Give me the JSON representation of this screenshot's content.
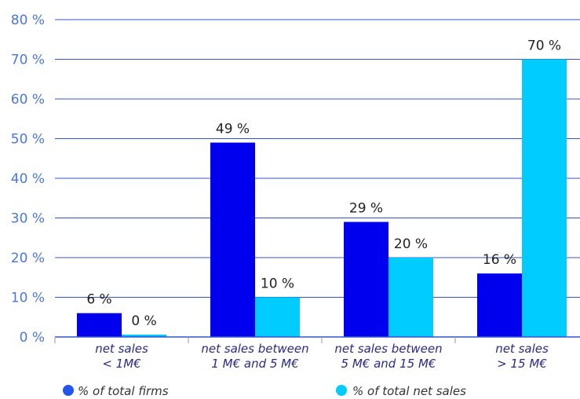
{
  "chart_data": {
    "type": "bar",
    "categories": [
      [
        "net sales",
        "< 1M€"
      ],
      [
        "net sales between",
        "1 M€ and 5 M€"
      ],
      [
        "net sales between",
        "5 M€ and 15 M€"
      ],
      [
        "net sales",
        "> 15 M€"
      ]
    ],
    "series": [
      {
        "name": "% of total firms",
        "values": [
          6,
          49,
          29,
          16
        ],
        "labels": [
          "6 %",
          "49 %",
          "29 %",
          "16 %"
        ],
        "color": "#0000ee"
      },
      {
        "name": "% of total net sales",
        "values": [
          0,
          10,
          20,
          70
        ],
        "labels": [
          "0 %",
          "10 %",
          "20 %",
          "70 %"
        ],
        "color": "#00ccff"
      }
    ],
    "ylim": [
      0,
      80
    ],
    "yticks": [
      0,
      10,
      20,
      30,
      40,
      50,
      60,
      70,
      80
    ],
    "ytick_labels": [
      "0 %",
      "10 %",
      "20 %",
      "30 %",
      "40 %",
      "50 %",
      "60 %",
      "70 %",
      "80 %"
    ],
    "grid": true,
    "legend_position": "bottom",
    "colors": {
      "grid": "#3355cc",
      "axis": "#3355cc",
      "tick_text": "#4a78d8",
      "legend_marker_1": "#2255ee"
    }
  }
}
